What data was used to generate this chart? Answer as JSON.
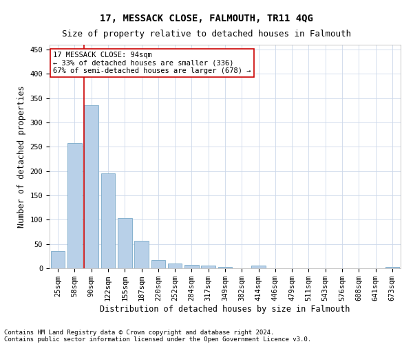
{
  "title": "17, MESSACK CLOSE, FALMOUTH, TR11 4QG",
  "subtitle": "Size of property relative to detached houses in Falmouth",
  "xlabel": "Distribution of detached houses by size in Falmouth",
  "ylabel": "Number of detached properties",
  "categories": [
    "25sqm",
    "58sqm",
    "90sqm",
    "122sqm",
    "155sqm",
    "187sqm",
    "220sqm",
    "252sqm",
    "284sqm",
    "317sqm",
    "349sqm",
    "382sqm",
    "414sqm",
    "446sqm",
    "479sqm",
    "511sqm",
    "543sqm",
    "576sqm",
    "608sqm",
    "641sqm",
    "673sqm"
  ],
  "values": [
    35,
    257,
    336,
    196,
    104,
    57,
    17,
    10,
    7,
    5,
    3,
    0,
    5,
    0,
    0,
    0,
    0,
    0,
    0,
    0,
    3
  ],
  "bar_color": "#b8d0e8",
  "bar_edge_color": "#7aaac8",
  "ylim": [
    0,
    460
  ],
  "yticks": [
    0,
    50,
    100,
    150,
    200,
    250,
    300,
    350,
    400,
    450
  ],
  "property_bin_index": 2,
  "vline_color": "#cc0000",
  "annotation_line1": "17 MESSACK CLOSE: 94sqm",
  "annotation_line2": "← 33% of detached houses are smaller (336)",
  "annotation_line3": "67% of semi-detached houses are larger (678) →",
  "annotation_box_color": "#ffffff",
  "annotation_box_edge": "#cc0000",
  "footer_line1": "Contains HM Land Registry data © Crown copyright and database right 2024.",
  "footer_line2": "Contains public sector information licensed under the Open Government Licence v3.0.",
  "background_color": "#ffffff",
  "grid_color": "#ccd8ea",
  "title_fontsize": 10,
  "subtitle_fontsize": 9,
  "xlabel_fontsize": 8.5,
  "ylabel_fontsize": 8.5,
  "tick_fontsize": 7.5,
  "annotation_fontsize": 7.5,
  "footer_fontsize": 6.5
}
